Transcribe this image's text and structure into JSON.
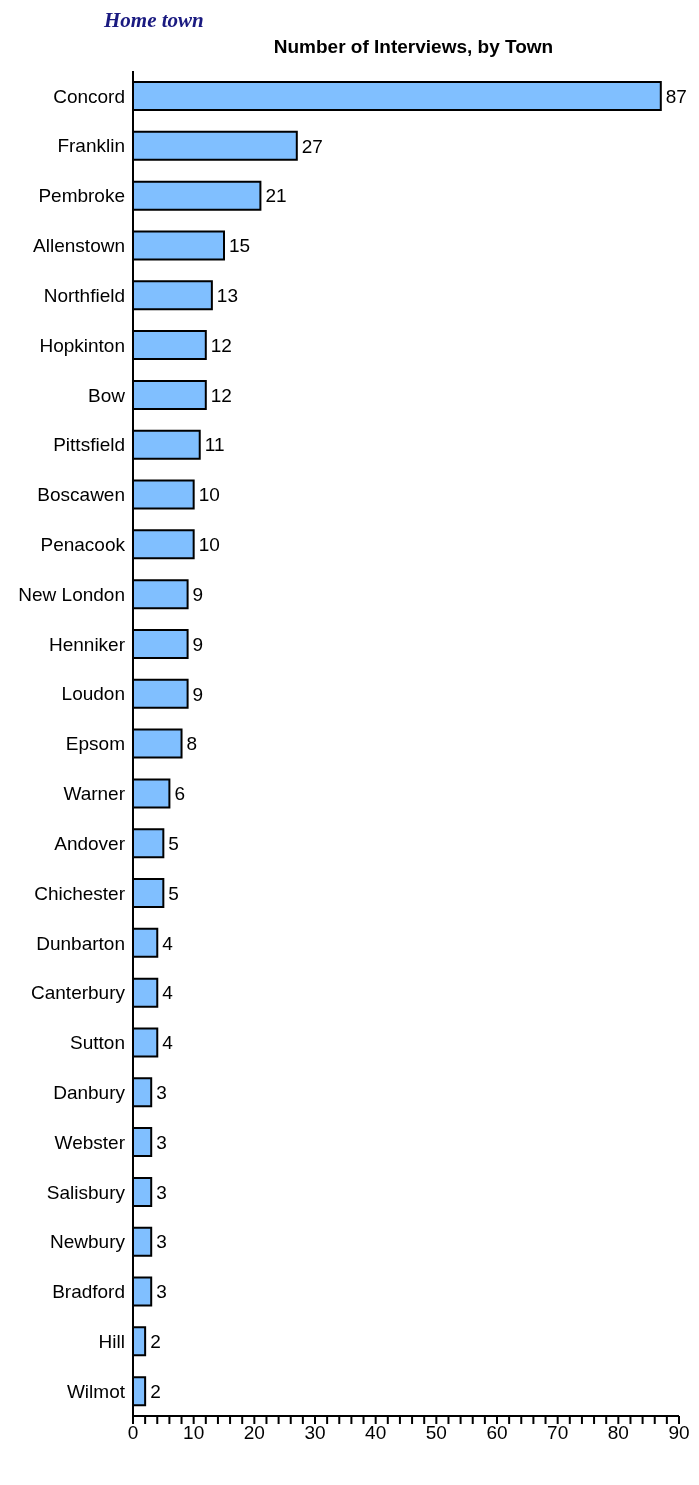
{
  "chart_data": {
    "type": "bar",
    "orientation": "horizontal",
    "title": "Home town",
    "subtitle": "Number of Interviews, by Town",
    "categories": [
      "Concord",
      "Franklin",
      "Pembroke",
      "Allenstown",
      "Northfield",
      "Hopkinton",
      "Bow",
      "Pittsfield",
      "Boscawen",
      "Penacook",
      "New London",
      "Henniker",
      "Loudon",
      "Epsom",
      "Warner",
      "Andover",
      "Chichester",
      "Dunbarton",
      "Canterbury",
      "Sutton",
      "Danbury",
      "Webster",
      "Salisbury",
      "Newbury",
      "Bradford",
      "Hill",
      "Wilmot"
    ],
    "values": [
      87,
      27,
      21,
      15,
      13,
      12,
      12,
      11,
      10,
      10,
      9,
      9,
      9,
      8,
      6,
      5,
      5,
      4,
      4,
      4,
      3,
      3,
      3,
      3,
      3,
      2,
      2
    ],
    "color": "#80bfff",
    "data_labels": true,
    "grid": false,
    "legend": false,
    "xlim": [
      0,
      90
    ],
    "xticks": [
      0,
      {
        "value": 2,
        "label": null
      },
      {
        "value": 4,
        "label": null
      },
      {
        "value": 6,
        "label": null
      },
      {
        "value": 8,
        "label": null
      },
      10,
      {
        "value": 12,
        "label": null
      },
      {
        "value": 14,
        "label": null
      },
      {
        "value": 16,
        "label": null
      },
      {
        "value": 18,
        "label": null
      },
      20,
      {
        "value": 22,
        "label": null
      },
      {
        "value": 24,
        "label": null
      },
      {
        "value": 26,
        "label": null
      },
      {
        "value": 28,
        "label": null
      },
      30,
      {
        "value": 32,
        "label": null
      },
      {
        "value": 34,
        "label": null
      },
      {
        "value": 36,
        "label": null
      },
      {
        "value": 38,
        "label": null
      },
      40,
      {
        "value": 42,
        "label": null
      },
      {
        "value": 44,
        "label": null
      },
      {
        "value": 46,
        "label": null
      },
      {
        "value": 48,
        "label": null
      },
      50,
      {
        "value": 52,
        "label": null
      },
      {
        "value": 54,
        "label": null
      },
      {
        "value": 56,
        "label": null
      },
      {
        "value": 58,
        "label": null
      },
      60,
      {
        "value": 62,
        "label": null
      },
      {
        "value": 64,
        "label": null
      },
      {
        "value": 66,
        "label": null
      },
      {
        "value": 68,
        "label": null
      },
      70,
      {
        "value": 72,
        "label": null
      },
      {
        "value": 74,
        "label": null
      },
      {
        "value": 76,
        "label": null
      },
      {
        "value": 78,
        "label": null
      },
      80,
      {
        "value": 82,
        "label": null
      },
      {
        "value": 84,
        "label": null
      },
      {
        "value": 86,
        "label": null
      },
      {
        "value": 88,
        "label": null
      },
      90
    ]
  }
}
